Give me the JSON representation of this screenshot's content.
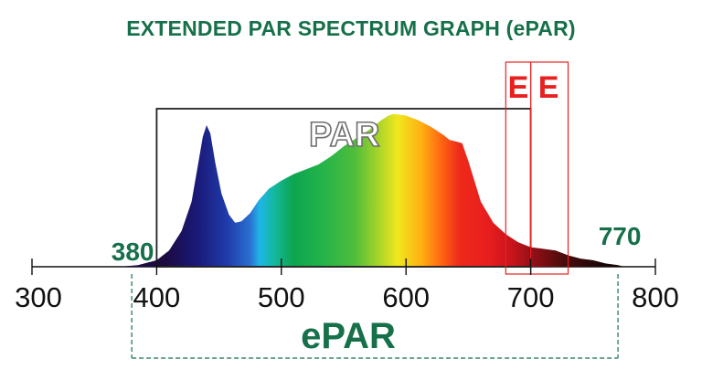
{
  "title": "EXTENDED PAR SPECTRUM GRAPH (ePAR)",
  "colors": {
    "title_green": "#16704a",
    "par_box": "#222222",
    "e_marker": "#e8201f",
    "axis": "#111111",
    "epar_bracket": "#16704a"
  },
  "chart_data": {
    "type": "area",
    "title": "EXTENDED PAR SPECTRUM GRAPH (ePAR)",
    "xlabel": "",
    "ylabel": "",
    "xlim": [
      300,
      800
    ],
    "ylim": [
      0,
      1
    ],
    "x_ticks": [
      300,
      400,
      500,
      600,
      700,
      800
    ],
    "x_tick_labels": [
      "300",
      "400",
      "500",
      "600",
      "700",
      "800"
    ],
    "grid": false,
    "legend": "none",
    "series": [
      {
        "x": [
          370,
          385,
          400,
          410,
          420,
          428,
          433,
          437,
          440,
          443,
          447,
          452,
          458,
          463,
          468,
          475,
          482,
          490,
          500,
          510,
          520,
          530,
          540,
          550,
          560,
          570,
          580,
          586,
          590,
          600,
          610,
          620,
          630,
          635,
          640,
          645,
          650,
          660,
          670,
          680,
          690,
          700,
          710,
          720,
          730,
          740,
          750,
          760,
          770,
          775
        ],
        "values": [
          0,
          0.01,
          0.04,
          0.1,
          0.22,
          0.4,
          0.62,
          0.8,
          0.87,
          0.82,
          0.64,
          0.45,
          0.32,
          0.27,
          0.28,
          0.33,
          0.41,
          0.48,
          0.53,
          0.57,
          0.6,
          0.63,
          0.68,
          0.74,
          0.79,
          0.84,
          0.9,
          0.93,
          0.94,
          0.93,
          0.9,
          0.86,
          0.81,
          0.78,
          0.77,
          0.76,
          0.65,
          0.4,
          0.27,
          0.2,
          0.15,
          0.12,
          0.11,
          0.1,
          0.07,
          0.05,
          0.04,
          0.02,
          0.01,
          0
        ]
      }
    ],
    "annotations": {
      "par_label": "PAR",
      "par_range": [
        400,
        700
      ],
      "e_label": "E",
      "e_bands": [
        [
          680,
          700
        ],
        [
          700,
          730
        ]
      ],
      "epar_label": "ePAR",
      "epar_range": [
        380,
        770
      ],
      "epar_start_label": "380",
      "epar_end_label": "770"
    }
  }
}
